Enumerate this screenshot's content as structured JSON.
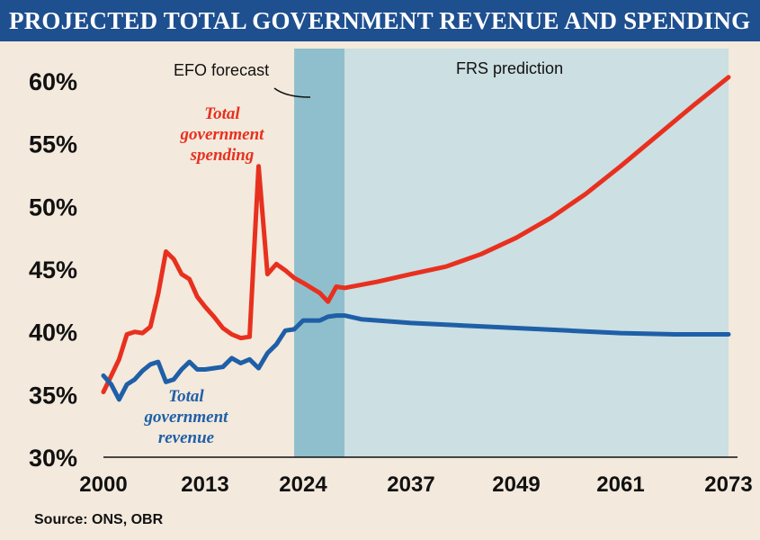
{
  "title": "PROJECTED TOTAL GOVERNMENT REVENUE AND SPENDING",
  "source": "Source: ONS, OBR",
  "colors": {
    "spending": "#e8301f",
    "revenue": "#1f5fa8",
    "efo_band": "#8fbfcc",
    "frs_band": "#ccdfe2",
    "background": "#f3e9dc",
    "title_bar": "#1e4f8f"
  },
  "chart_data": {
    "type": "line",
    "title": "PROJECTED TOTAL GOVERNMENT REVENUE AND SPENDING",
    "xlabel": "",
    "ylabel": "",
    "xlim": [
      2000,
      2073
    ],
    "ylim": [
      30,
      60
    ],
    "x_ticks": [
      2000,
      2013,
      2024,
      2037,
      2049,
      2061,
      2073
    ],
    "y_ticks": [
      30,
      35,
      40,
      45,
      50,
      55,
      60
    ],
    "y_tick_labels": [
      "30%",
      "35%",
      "40%",
      "45%",
      "50%",
      "55%",
      "60%"
    ],
    "x_tick_labels": [
      "2000",
      "2013",
      "2024",
      "2037",
      "2049",
      "2061",
      "2073"
    ],
    "grid": false,
    "regions": [
      {
        "label": "EFO forecast",
        "start": 2023,
        "end": 2029
      },
      {
        "label": "FRS prediction",
        "start": 2029,
        "end": 2073
      }
    ],
    "series": [
      {
        "name": "Total government spending",
        "color": "#e8301f",
        "points": [
          [
            2000,
            35.2
          ],
          [
            2001,
            36.5
          ],
          [
            2002,
            37.8
          ],
          [
            2003,
            39.8
          ],
          [
            2004,
            40.0
          ],
          [
            2005,
            39.9
          ],
          [
            2006,
            40.4
          ],
          [
            2007,
            43.0
          ],
          [
            2008,
            46.4
          ],
          [
            2009,
            45.8
          ],
          [
            2010,
            44.6
          ],
          [
            2011,
            44.2
          ],
          [
            2012,
            42.8
          ],
          [
            2013,
            42.0
          ],
          [
            2014,
            41.2
          ],
          [
            2015,
            40.3
          ],
          [
            2016,
            39.8
          ],
          [
            2017,
            39.5
          ],
          [
            2018,
            39.6
          ],
          [
            2019,
            53.2
          ],
          [
            2020,
            44.6
          ],
          [
            2021,
            45.4
          ],
          [
            2022,
            44.9
          ],
          [
            2023,
            44.3
          ],
          [
            2024,
            43.9
          ],
          [
            2025,
            43.5
          ],
          [
            2026,
            43.1
          ],
          [
            2027,
            42.4
          ],
          [
            2028,
            43.6
          ],
          [
            2029,
            43.5
          ],
          [
            2033,
            44.0
          ],
          [
            2037,
            44.6
          ],
          [
            2041,
            45.2
          ],
          [
            2045,
            46.2
          ],
          [
            2049,
            47.5
          ],
          [
            2053,
            49.1
          ],
          [
            2057,
            51.0
          ],
          [
            2061,
            53.2
          ],
          [
            2065,
            55.6
          ],
          [
            2069,
            58.0
          ],
          [
            2073,
            60.3
          ]
        ]
      },
      {
        "name": "Total government revenue",
        "color": "#1f5fa8",
        "points": [
          [
            2000,
            36.5
          ],
          [
            2001,
            35.8
          ],
          [
            2002,
            34.6
          ],
          [
            2003,
            35.8
          ],
          [
            2004,
            36.2
          ],
          [
            2005,
            36.9
          ],
          [
            2006,
            37.4
          ],
          [
            2007,
            37.6
          ],
          [
            2008,
            36.0
          ],
          [
            2009,
            36.2
          ],
          [
            2010,
            37.0
          ],
          [
            2011,
            37.6
          ],
          [
            2012,
            37.0
          ],
          [
            2013,
            37.0
          ],
          [
            2014,
            37.1
          ],
          [
            2015,
            37.2
          ],
          [
            2016,
            37.9
          ],
          [
            2017,
            37.5
          ],
          [
            2018,
            37.8
          ],
          [
            2019,
            37.1
          ],
          [
            2020,
            38.3
          ],
          [
            2021,
            39.0
          ],
          [
            2022,
            40.1
          ],
          [
            2023,
            40.2
          ],
          [
            2024,
            40.9
          ],
          [
            2025,
            40.9
          ],
          [
            2026,
            40.9
          ],
          [
            2027,
            41.2
          ],
          [
            2028,
            41.3
          ],
          [
            2029,
            41.3
          ],
          [
            2031,
            41.0
          ],
          [
            2037,
            40.7
          ],
          [
            2043,
            40.5
          ],
          [
            2049,
            40.3
          ],
          [
            2055,
            40.1
          ],
          [
            2061,
            39.9
          ],
          [
            2067,
            39.8
          ],
          [
            2073,
            39.8
          ]
        ]
      }
    ],
    "annotations": [
      {
        "text": [
          "Total",
          "government",
          "spending"
        ],
        "series": "Total government spending"
      },
      {
        "text": [
          "Total",
          "government",
          "revenue"
        ],
        "series": "Total government revenue"
      }
    ]
  }
}
